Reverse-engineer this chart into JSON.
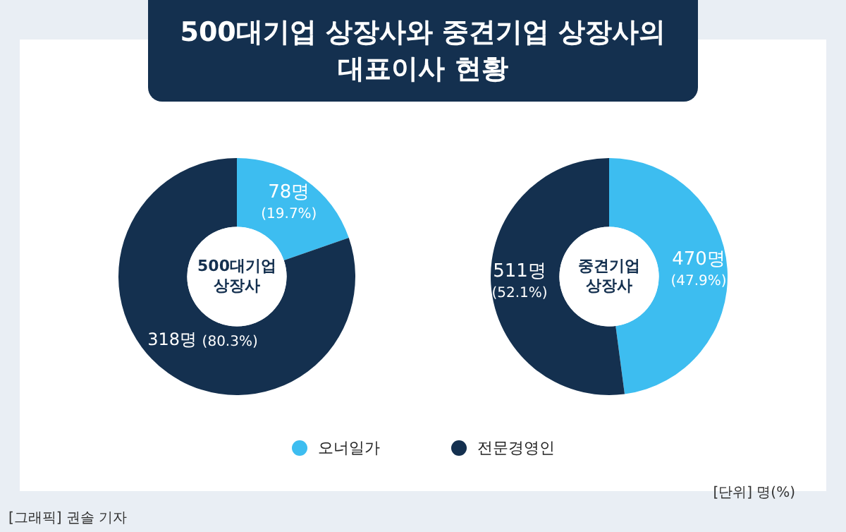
{
  "chart_data": [
    {
      "type": "donut",
      "title": "500대기업\n상장사",
      "categories": [
        "오너일가",
        "전문경영인"
      ],
      "values": [
        78,
        318
      ],
      "colors": [
        "#3dbdf0",
        "#14304f"
      ],
      "value_labels": [
        "78명\n(19.7%)",
        "318명 (80.3%)"
      ],
      "legend": "bottom",
      "annotations": [
        "500대기업 상장사와 중견기업 상장사의\n대표이사 현황",
        "[단위] 명(%)",
        "[그래픽] 권솔 기자"
      ]
    },
    {
      "type": "donut",
      "title": "중견기업\n상장사",
      "categories": [
        null,
        null
      ],
      "values": [
        470,
        511
      ],
      "colors": [
        "#3dbdf0",
        "#14304f"
      ],
      "value_labels": [
        "470명\n(47.9%)",
        "511명\n(52.1%)"
      ]
    }
  ]
}
